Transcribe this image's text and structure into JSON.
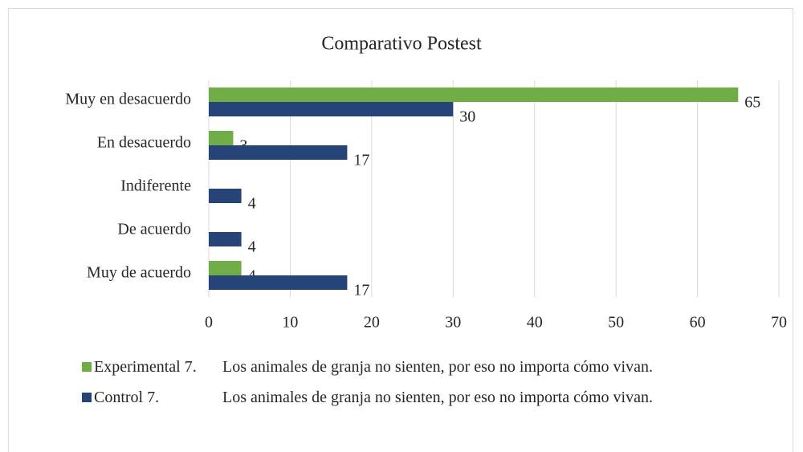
{
  "chart_data": {
    "type": "hbar",
    "title": "Comparativo Postest",
    "categories": [
      "Muy en desacuerdo",
      "En desacuerdo",
      "Indiferente",
      "De acuerdo",
      "Muy de acuerdo"
    ],
    "series": [
      {
        "name": "Experimental 7.\tLos animales de granja no sienten, por eso no importa cómo vivan.",
        "color": "#70ad47",
        "values": [
          65,
          3,
          null,
          null,
          4
        ]
      },
      {
        "name": "Control 7.\tLos animales de granja no sienten, por eso no importa cómo vivan.",
        "color": "#264478",
        "values": [
          30,
          17,
          4,
          4,
          17
        ]
      }
    ],
    "xlim": [
      0,
      70
    ],
    "xticks": [
      0,
      10,
      20,
      30,
      40,
      50,
      60,
      70
    ],
    "grid": true,
    "legend": "bottom"
  }
}
